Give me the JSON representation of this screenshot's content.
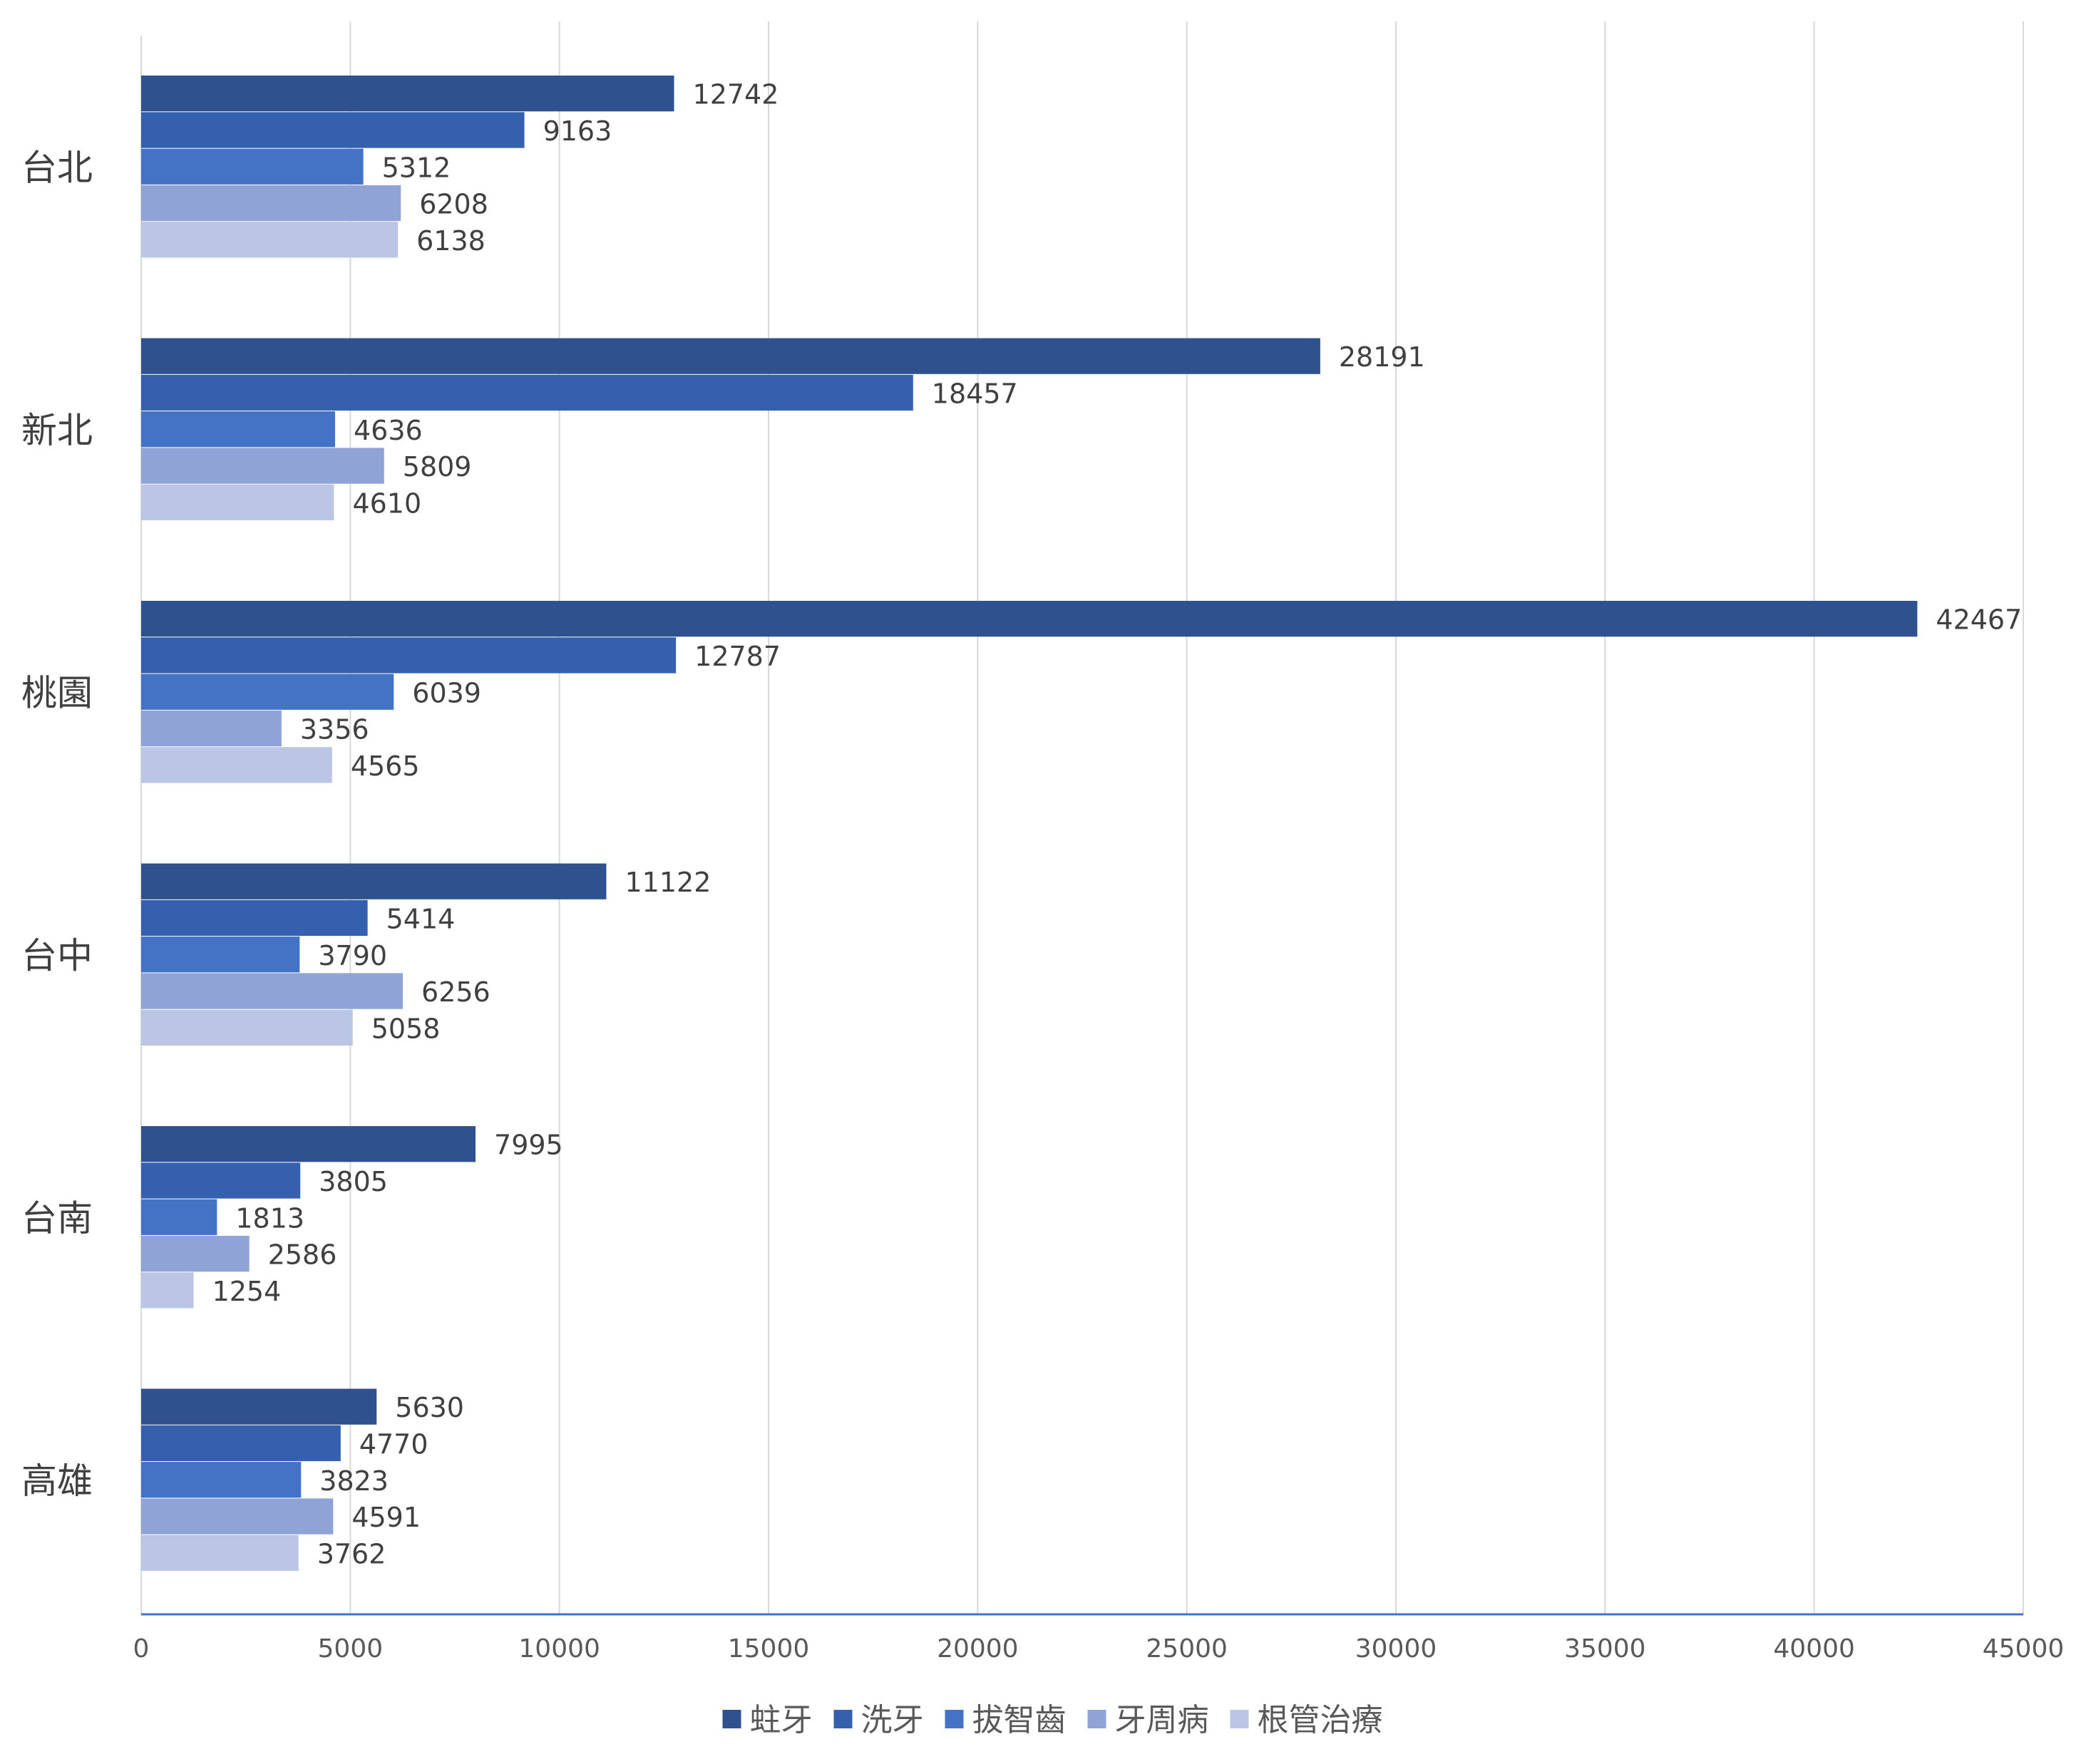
{
  "chart_data": {
    "type": "bar",
    "orientation": "horizontal",
    "title": "",
    "xlabel": "",
    "ylabel": "",
    "xlim": [
      0,
      45000
    ],
    "x_ticks": [
      0,
      5000,
      10000,
      15000,
      20000,
      25000,
      30000,
      35000,
      40000,
      45000
    ],
    "grid": true,
    "legend_position": "bottom",
    "categories": [
      "台北",
      "新北",
      "桃園",
      "台中",
      "台南",
      "高雄"
    ],
    "series": [
      {
        "name": "蛀牙",
        "color": "#2f528f",
        "values": [
          12742,
          28191,
          42467,
          11122,
          7995,
          5630
        ]
      },
      {
        "name": "洗牙",
        "color": "#3560ad",
        "values": [
          9163,
          18457,
          12787,
          5414,
          3805,
          4770
        ]
      },
      {
        "name": "拔智齒",
        "color": "#4472c4",
        "values": [
          5312,
          4636,
          6039,
          3790,
          1813,
          3823
        ]
      },
      {
        "name": "牙周病",
        "color": "#8fa3d6",
        "values": [
          6208,
          5809,
          3356,
          6256,
          2586,
          4591
        ]
      },
      {
        "name": "根管治療",
        "color": "#bbc6e4",
        "values": [
          6138,
          4610,
          4565,
          5058,
          1254,
          3762
        ]
      }
    ]
  }
}
